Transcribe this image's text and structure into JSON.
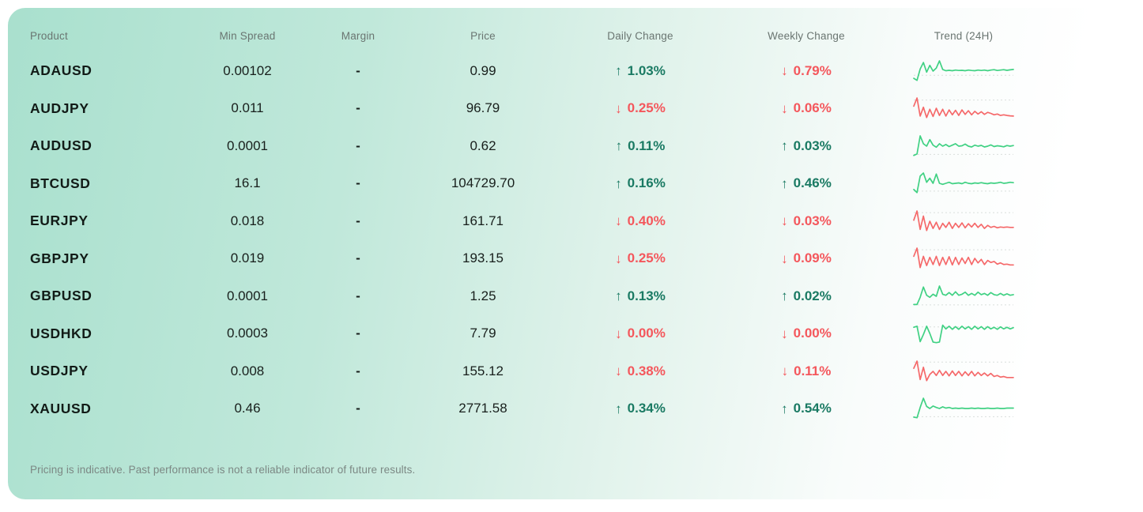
{
  "colors": {
    "up_text": "#1a7a63",
    "down_text": "#f4575c",
    "spark_up": "#40d183",
    "spark_down": "#f5696a",
    "baseline": "#d9dedc",
    "card_gradient_start": "#a9e0ce",
    "card_gradient_end": "#ffffff"
  },
  "icons": {
    "up_arrow": "↑",
    "down_arrow": "↓"
  },
  "table": {
    "columns": [
      "Product",
      "Min Spread",
      "Margin",
      "Price",
      "Daily Change",
      "Weekly Change",
      "Trend (24H)"
    ],
    "rows": [
      {
        "product": "ADAUSD",
        "min_spread": "0.00102",
        "margin": "-",
        "price": "0.99",
        "daily_change": {
          "direction": "up",
          "value": "1.03%"
        },
        "weekly_change": {
          "direction": "down",
          "value": "0.79%"
        },
        "trend": {
          "direction": "up",
          "baseline": 0.3,
          "points": [
            0.15,
            0.05,
            0.6,
            0.92,
            0.45,
            0.78,
            0.5,
            0.65,
            1.0,
            0.58,
            0.52,
            0.54,
            0.52,
            0.55,
            0.53,
            0.54,
            0.52,
            0.55,
            0.53,
            0.52,
            0.55,
            0.53,
            0.55,
            0.52,
            0.55,
            0.57,
            0.53,
            0.55,
            0.57,
            0.54,
            0.56,
            0.58
          ]
        }
      },
      {
        "product": "AUDJPY",
        "min_spread": "0.011",
        "margin": "-",
        "price": "96.79",
        "daily_change": {
          "direction": "down",
          "value": "0.25%"
        },
        "weekly_change": {
          "direction": "down",
          "value": "0.06%"
        },
        "trend": {
          "direction": "down",
          "baseline": 0.9,
          "points": [
            0.6,
            1.0,
            0.12,
            0.55,
            0.05,
            0.45,
            0.1,
            0.5,
            0.15,
            0.45,
            0.12,
            0.42,
            0.18,
            0.4,
            0.15,
            0.42,
            0.2,
            0.38,
            0.18,
            0.35,
            0.22,
            0.33,
            0.2,
            0.3,
            0.25,
            0.18,
            0.22,
            0.15,
            0.18,
            0.15,
            0.13,
            0.12
          ]
        }
      },
      {
        "product": "AUDUSD",
        "min_spread": "0.0001",
        "margin": "-",
        "price": "0.62",
        "daily_change": {
          "direction": "up",
          "value": "0.11%"
        },
        "weekly_change": {
          "direction": "up",
          "value": "0.03%"
        },
        "trend": {
          "direction": "up",
          "baseline": 0.1,
          "points": [
            0.05,
            0.12,
            1.0,
            0.62,
            0.5,
            0.82,
            0.55,
            0.45,
            0.62,
            0.5,
            0.58,
            0.48,
            0.55,
            0.62,
            0.5,
            0.52,
            0.6,
            0.5,
            0.46,
            0.55,
            0.5,
            0.54,
            0.46,
            0.5,
            0.56,
            0.48,
            0.52,
            0.5,
            0.47,
            0.53,
            0.5,
            0.53
          ]
        }
      },
      {
        "product": "BTCUSD",
        "min_spread": "16.1",
        "margin": "-",
        "price": "104729.70",
        "daily_change": {
          "direction": "up",
          "value": "0.16%"
        },
        "weekly_change": {
          "direction": "up",
          "value": "0.46%"
        },
        "trend": {
          "direction": "up",
          "baseline": 0.12,
          "points": [
            0.2,
            0.05,
            0.85,
            1.0,
            0.55,
            0.75,
            0.5,
            0.95,
            0.5,
            0.45,
            0.5,
            0.55,
            0.48,
            0.5,
            0.52,
            0.48,
            0.55,
            0.5,
            0.48,
            0.52,
            0.5,
            0.53,
            0.5,
            0.48,
            0.52,
            0.5,
            0.52,
            0.55,
            0.5,
            0.52,
            0.55,
            0.53
          ]
        }
      },
      {
        "product": "EURJPY",
        "min_spread": "0.018",
        "margin": "-",
        "price": "161.71",
        "daily_change": {
          "direction": "down",
          "value": "0.40%"
        },
        "weekly_change": {
          "direction": "down",
          "value": "0.03%"
        },
        "trend": {
          "direction": "down",
          "baseline": 0.92,
          "points": [
            0.55,
            1.0,
            0.1,
            0.75,
            0.05,
            0.5,
            0.15,
            0.45,
            0.1,
            0.4,
            0.2,
            0.45,
            0.15,
            0.4,
            0.2,
            0.42,
            0.18,
            0.38,
            0.22,
            0.4,
            0.2,
            0.35,
            0.15,
            0.3,
            0.2,
            0.25,
            0.18,
            0.22,
            0.2,
            0.22,
            0.2,
            0.2
          ]
        }
      },
      {
        "product": "GBPJPY",
        "min_spread": "0.019",
        "margin": "-",
        "price": "193.15",
        "daily_change": {
          "direction": "down",
          "value": "0.25%"
        },
        "weekly_change": {
          "direction": "down",
          "value": "0.09%"
        },
        "trend": {
          "direction": "down",
          "baseline": 0.92,
          "points": [
            0.6,
            1.0,
            0.05,
            0.6,
            0.15,
            0.55,
            0.2,
            0.6,
            0.15,
            0.55,
            0.2,
            0.58,
            0.18,
            0.55,
            0.2,
            0.52,
            0.25,
            0.55,
            0.2,
            0.5,
            0.28,
            0.45,
            0.2,
            0.4,
            0.3,
            0.35,
            0.22,
            0.28,
            0.2,
            0.22,
            0.18,
            0.18
          ]
        }
      },
      {
        "product": "GBPUSD",
        "min_spread": "0.0001",
        "margin": "-",
        "price": "1.25",
        "daily_change": {
          "direction": "up",
          "value": "0.13%"
        },
        "weekly_change": {
          "direction": "up",
          "value": "0.02%"
        },
        "trend": {
          "direction": "up",
          "baseline": 0.08,
          "points": [
            0.1,
            0.1,
            0.45,
            0.95,
            0.55,
            0.45,
            0.6,
            0.5,
            1.0,
            0.6,
            0.55,
            0.68,
            0.55,
            0.72,
            0.55,
            0.6,
            0.7,
            0.55,
            0.64,
            0.55,
            0.7,
            0.58,
            0.64,
            0.55,
            0.68,
            0.58,
            0.55,
            0.64,
            0.55,
            0.62,
            0.55,
            0.58
          ]
        }
      },
      {
        "product": "USDHKD",
        "min_spread": "0.0003",
        "margin": "-",
        "price": "7.79",
        "daily_change": {
          "direction": "down",
          "value": "0.00%"
        },
        "weekly_change": {
          "direction": "down",
          "value": "0.00%"
        },
        "trend": {
          "direction": "up",
          "baseline": 0.82,
          "points": [
            0.8,
            0.85,
            0.1,
            0.45,
            0.85,
            0.5,
            0.08,
            0.05,
            0.08,
            0.9,
            0.72,
            0.85,
            0.7,
            0.83,
            0.7,
            0.85,
            0.72,
            0.83,
            0.7,
            0.85,
            0.72,
            0.83,
            0.7,
            0.83,
            0.72,
            0.8,
            0.7,
            0.82,
            0.72,
            0.8,
            0.72,
            0.78
          ]
        }
      },
      {
        "product": "USDJPY",
        "min_spread": "0.008",
        "margin": "-",
        "price": "155.12",
        "daily_change": {
          "direction": "down",
          "value": "0.38%"
        },
        "weekly_change": {
          "direction": "down",
          "value": "0.11%"
        },
        "trend": {
          "direction": "down",
          "baseline": 0.95,
          "points": [
            0.65,
            1.0,
            0.1,
            0.7,
            0.05,
            0.35,
            0.5,
            0.3,
            0.55,
            0.3,
            0.5,
            0.28,
            0.52,
            0.3,
            0.5,
            0.28,
            0.48,
            0.3,
            0.5,
            0.28,
            0.45,
            0.3,
            0.42,
            0.28,
            0.4,
            0.25,
            0.3,
            0.22,
            0.25,
            0.2,
            0.2,
            0.2
          ]
        }
      },
      {
        "product": "XAUUSD",
        "min_spread": "0.46",
        "margin": "-",
        "price": "2771.58",
        "daily_change": {
          "direction": "up",
          "value": "0.34%"
        },
        "weekly_change": {
          "direction": "up",
          "value": "0.54%"
        },
        "trend": {
          "direction": "up",
          "baseline": 0.1,
          "points": [
            0.08,
            0.05,
            0.55,
            1.0,
            0.6,
            0.5,
            0.62,
            0.55,
            0.5,
            0.58,
            0.52,
            0.55,
            0.5,
            0.52,
            0.5,
            0.52,
            0.5,
            0.5,
            0.52,
            0.5,
            0.52,
            0.5,
            0.5,
            0.52,
            0.5,
            0.5,
            0.52,
            0.5,
            0.5,
            0.52,
            0.52,
            0.52
          ]
        }
      }
    ]
  },
  "footer": {
    "disclaimer": "Pricing is indicative. Past performance is not a reliable indicator of future results."
  }
}
